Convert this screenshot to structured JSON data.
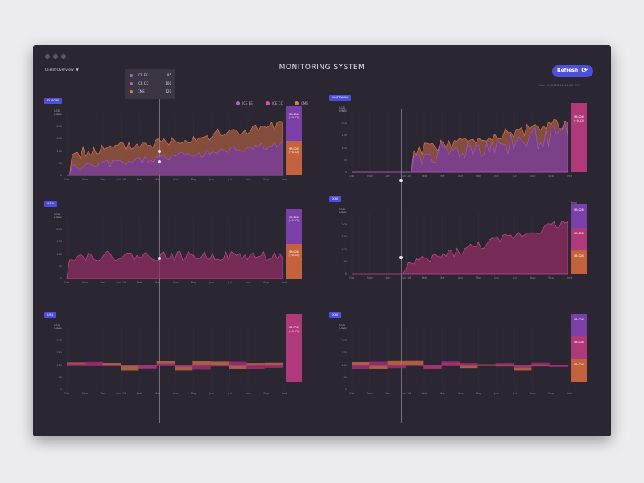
{
  "app": {
    "title": "MONITORING SYSTEM",
    "view_select": "Client Overview",
    "refresh_label": "Refresh",
    "timestamp": "Nov 15, 2018 11:46 AM GMT",
    "accent": "#4e4fd9"
  },
  "tooltip": {
    "rows": [
      {
        "name": "ICE EE",
        "value": "85",
        "color": "#b45cd6"
      },
      {
        "name": "ICE CC",
        "value": "100",
        "color": "#d6509a"
      },
      {
        "name": "CME",
        "value": "120",
        "color": "#e07a52"
      }
    ]
  },
  "legend": [
    {
      "name": "ICE EE",
      "color": "#b45cd6"
    },
    {
      "name": "ICE CC",
      "color": "#d6509a"
    },
    {
      "name": "CME",
      "color": "#e07a52"
    }
  ],
  "icons": {
    "refresh": "refresh-icon",
    "caret": "chevron-down-icon"
  },
  "months_a": [
    "Oct",
    "Nov",
    "Dec",
    "Jan '18",
    "Feb",
    "Mar",
    "Apr",
    "May",
    "Jun",
    "Jul",
    "Aug",
    "Sep",
    "Oct"
  ],
  "months_b": [
    "Oct",
    "Nov",
    "Dec",
    "Jan '18",
    "Feb",
    "Mar",
    "Apr",
    "May",
    "Jun",
    "Jul",
    "Aug",
    "Sep",
    "Oct"
  ],
  "yticks": [
    "250",
    "200",
    "150",
    "100",
    "50",
    "0"
  ],
  "panels": [
    {
      "id": "europe",
      "region": "EUROPE",
      "unit": "USD\nMWh",
      "side": [
        {
          "label": "88.008\n(+0.02)",
          "color": "#7b3fa8"
        },
        {
          "label": "88.008\n(+0.02)",
          "color": "#c4623e"
        }
      ]
    },
    {
      "id": "asia",
      "region": "ASIA",
      "unit": "USD\nMWh",
      "side": [
        {
          "label": "88.008\n(+0.02)",
          "color": "#7b3fa8"
        },
        {
          "label": "88.008\n(+0.02)",
          "color": "#c4623e"
        }
      ]
    },
    {
      "id": "usa",
      "region": "USA",
      "unit": "USD\nMWh",
      "side": [
        {
          "label": "88.008\n(+0.02)",
          "color": "#b03a79"
        }
      ]
    },
    {
      "id": "australia",
      "region": "AUSTRALIA",
      "unit": "USD\nMWh",
      "side": [
        {
          "label": "88.008\n(+0.02)",
          "color": "#b03a79"
        }
      ]
    },
    {
      "id": "bar1",
      "region": "XXX",
      "unit": "USD\nMWh",
      "unit_right": "Final\nvalue",
      "side": [
        {
          "label": "88.008",
          "color": "#7b3fa8"
        },
        {
          "label": "88.008",
          "color": "#b03a79"
        },
        {
          "label": "88.008",
          "color": "#c4623e"
        }
      ]
    },
    {
      "id": "bar2",
      "region": "XXX",
      "unit": "USD\nMWh",
      "unit_right": "Final\nvalue",
      "side": [
        {
          "label": "88.008",
          "color": "#7b3fa8"
        },
        {
          "label": "88.008",
          "color": "#b03a79"
        },
        {
          "label": "88.008",
          "color": "#c4623e"
        }
      ]
    }
  ]
}
